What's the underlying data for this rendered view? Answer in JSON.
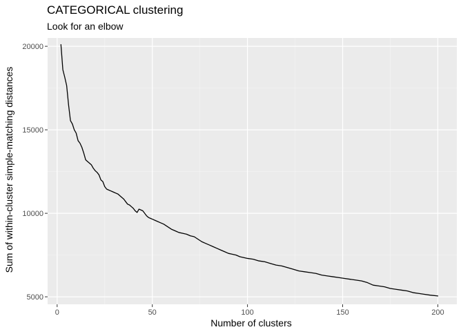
{
  "chart_data": {
    "type": "line",
    "title": "CATEGORICAL clustering",
    "subtitle": "Look for an elbow",
    "xlabel": "Number of clusters",
    "ylabel": "Sum of within-cluster simple-matching distances",
    "xlim": [
      -5,
      210
    ],
    "ylim": [
      4550,
      20500
    ],
    "x_ticks": [
      0,
      50,
      100,
      150,
      200
    ],
    "x_tick_labels": [
      "0",
      "50",
      "100",
      "150",
      "200"
    ],
    "y_ticks": [
      5000,
      10000,
      15000,
      20000
    ],
    "y_tick_labels": [
      "5000",
      "10000",
      "15000",
      "20000"
    ],
    "grid": true,
    "legend": "none",
    "colors": {
      "panel_background": "#ebebeb",
      "grid_major": "#ffffff",
      "grid_minor": "#f5f5f5",
      "line": "#000000",
      "tick_text": "#4d4d4d",
      "tick_mark": "#333333"
    },
    "series": [
      {
        "x": [
          2,
          3,
          4,
          5,
          6,
          7,
          8,
          9,
          10,
          11,
          12,
          13,
          14,
          15,
          16,
          17,
          18,
          19,
          20,
          21,
          22,
          23,
          24,
          25,
          26,
          27,
          28,
          29,
          30,
          31,
          32,
          33,
          34,
          35,
          36,
          37,
          38,
          39,
          40,
          41,
          42,
          43,
          44,
          45,
          46,
          47,
          48,
          49,
          50,
          52,
          54,
          56,
          58,
          60,
          62,
          64,
          66,
          68,
          70,
          72,
          74,
          76,
          78,
          80,
          82,
          84,
          86,
          88,
          90,
          92,
          94,
          96,
          98,
          100,
          103,
          106,
          109,
          112,
          115,
          118,
          121,
          124,
          127,
          130,
          133,
          136,
          139,
          142,
          145,
          148,
          151,
          154,
          157,
          160,
          163,
          166,
          169,
          172,
          175,
          178,
          181,
          184,
          187,
          190,
          193,
          196,
          200
        ],
        "values": [
          20100,
          18600,
          18150,
          17650,
          16500,
          15550,
          15350,
          15000,
          14800,
          14350,
          14200,
          13950,
          13600,
          13200,
          13100,
          13000,
          12900,
          12700,
          12550,
          12450,
          12300,
          12000,
          11900,
          11600,
          11450,
          11400,
          11350,
          11300,
          11250,
          11200,
          11150,
          11050,
          10950,
          10850,
          10700,
          10550,
          10500,
          10400,
          10300,
          10150,
          10050,
          10250,
          10200,
          10150,
          10000,
          9850,
          9750,
          9700,
          9650,
          9550,
          9450,
          9350,
          9200,
          9050,
          8950,
          8850,
          8800,
          8750,
          8650,
          8600,
          8450,
          8300,
          8200,
          8100,
          8000,
          7900,
          7800,
          7700,
          7600,
          7550,
          7500,
          7400,
          7350,
          7300,
          7250,
          7150,
          7100,
          7000,
          6900,
          6850,
          6750,
          6650,
          6550,
          6500,
          6450,
          6400,
          6300,
          6250,
          6200,
          6150,
          6100,
          6050,
          6000,
          5950,
          5850,
          5700,
          5650,
          5600,
          5500,
          5450,
          5400,
          5350,
          5250,
          5200,
          5150,
          5100,
          5050
        ]
      }
    ]
  }
}
